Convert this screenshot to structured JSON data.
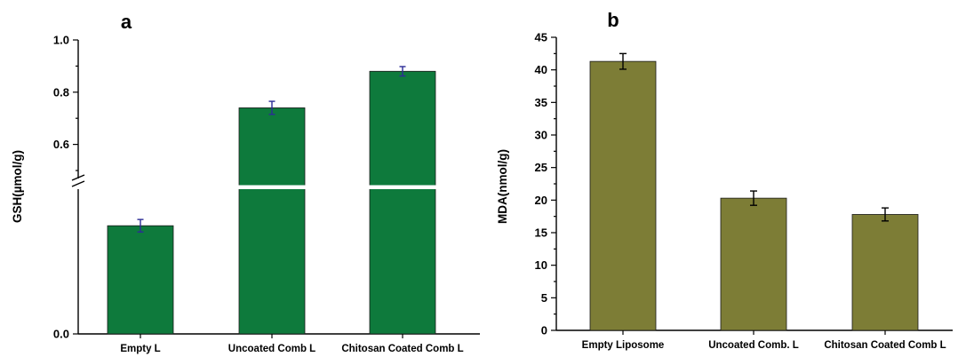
{
  "chart_data": [
    {
      "panel_label": "a",
      "type": "bar",
      "ylabel": "GSH(µmol/g)",
      "categories": [
        "Empty L",
        "Uncoated Comb L",
        "Chitosan Coated Comb L"
      ],
      "values": [
        0.26,
        0.74,
        0.88
      ],
      "errors": [
        0.015,
        0.025,
        0.018
      ],
      "ylim": [
        0.0,
        1.0
      ],
      "axis_break": true,
      "yticks": [
        "0.0",
        "0.6",
        "0.8",
        "1.0"
      ],
      "bar_color": "#0e7a3c",
      "error_color": "#2c2c96",
      "grid": false
    },
    {
      "panel_label": "b",
      "type": "bar",
      "ylabel": "MDA(nmol/g)",
      "categories": [
        "Empty Liposome",
        "Uncoated Comb. L",
        "Chitosan Coated Comb L"
      ],
      "values": [
        41.3,
        20.3,
        17.8
      ],
      "errors": [
        1.2,
        1.1,
        1.0
      ],
      "ylim": [
        0,
        45
      ],
      "yticks": [
        "0",
        "5",
        "10",
        "15",
        "20",
        "25",
        "30",
        "35",
        "40",
        "45"
      ],
      "bar_color": "#7d7d36",
      "error_color": "#000000",
      "grid": false
    }
  ]
}
